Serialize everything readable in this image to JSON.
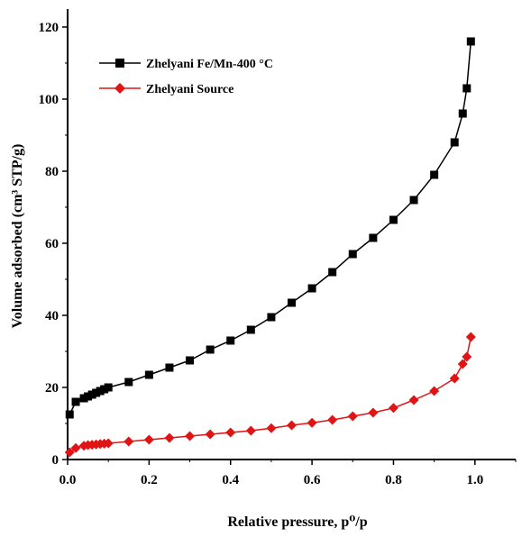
{
  "chart_data": {
    "type": "line",
    "title": "",
    "xlabel": "Relative pressure, p⁰/p",
    "ylabel": "Volume adsorbed (cm³ STP/g)",
    "xlim": [
      0,
      1.1
    ],
    "ylim": [
      0,
      125
    ],
    "x_ticks": [
      "0.0",
      "0.2",
      "0.4",
      "0.6",
      "0.8",
      "1.0"
    ],
    "y_ticks": [
      "0",
      "20",
      "40",
      "60",
      "80",
      "100",
      "120"
    ],
    "x_tick_values": [
      0,
      0.2,
      0.4,
      0.6,
      0.8,
      1.0
    ],
    "y_tick_values": [
      0,
      20,
      40,
      60,
      80,
      100,
      120
    ],
    "grid": false,
    "legend_position": "top-left",
    "series": [
      {
        "name": "Zhelyani Fe/Mn-400 °C",
        "color": "#000000",
        "marker": "square",
        "x": [
          0.005,
          0.02,
          0.04,
          0.05,
          0.06,
          0.07,
          0.08,
          0.09,
          0.1,
          0.15,
          0.2,
          0.25,
          0.3,
          0.35,
          0.4,
          0.45,
          0.5,
          0.55,
          0.6,
          0.65,
          0.7,
          0.75,
          0.8,
          0.85,
          0.9,
          0.95,
          0.97,
          0.98,
          0.99
        ],
        "y": [
          12.5,
          16,
          17,
          17.5,
          18,
          18.5,
          19,
          19.5,
          20,
          21.5,
          23.5,
          25.5,
          27.5,
          30.5,
          33,
          36,
          39.5,
          43.5,
          47.5,
          52,
          57,
          61.5,
          66.5,
          72,
          79,
          88,
          96,
          103,
          116
        ]
      },
      {
        "name": "Zhelyani Source",
        "color": "#e01414",
        "marker": "diamond",
        "x": [
          0.005,
          0.02,
          0.04,
          0.05,
          0.06,
          0.07,
          0.08,
          0.09,
          0.1,
          0.15,
          0.2,
          0.25,
          0.3,
          0.35,
          0.4,
          0.45,
          0.5,
          0.55,
          0.6,
          0.65,
          0.7,
          0.75,
          0.8,
          0.85,
          0.9,
          0.95,
          0.97,
          0.98,
          0.99
        ],
        "y": [
          2,
          3.2,
          3.8,
          4,
          4.1,
          4.2,
          4.3,
          4.4,
          4.5,
          5,
          5.5,
          6,
          6.5,
          7,
          7.5,
          8,
          8.7,
          9.5,
          10.2,
          11,
          12,
          13,
          14.3,
          16.5,
          19,
          22.5,
          26.5,
          28.5,
          34
        ]
      }
    ]
  }
}
